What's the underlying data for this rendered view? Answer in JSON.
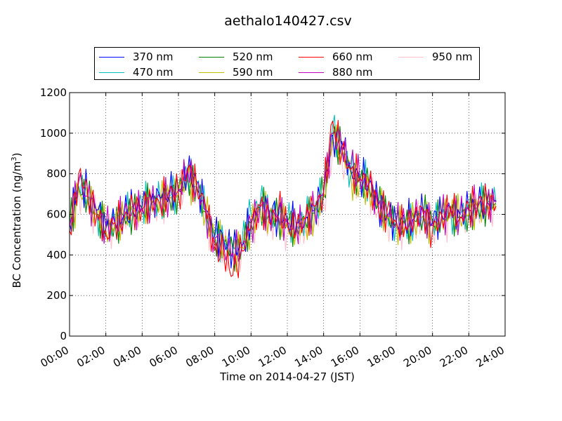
{
  "chart_data": {
    "type": "line",
    "title": "aethalo140427.csv",
    "xlabel": "Time on 2014-04-27 (JST)",
    "ylabel": "BC Concentration (ng/m",
    "ylabel_sup": "3",
    "ylabel_close": ")",
    "xlim": [
      0,
      24
    ],
    "ylim": [
      0,
      1200
    ],
    "grid": true,
    "legend_position": "upper-center",
    "x_ticks": [
      {
        "value": 0,
        "label": "00:00"
      },
      {
        "value": 2,
        "label": "02:00"
      },
      {
        "value": 4,
        "label": "04:00"
      },
      {
        "value": 6,
        "label": "06:00"
      },
      {
        "value": 8,
        "label": "08:00"
      },
      {
        "value": 10,
        "label": "10:00"
      },
      {
        "value": 12,
        "label": "12:00"
      },
      {
        "value": 14,
        "label": "14:00"
      },
      {
        "value": 16,
        "label": "16:00"
      },
      {
        "value": 18,
        "label": "18:00"
      },
      {
        "value": 20,
        "label": "20:00"
      },
      {
        "value": 22,
        "label": "22:00"
      },
      {
        "value": 24,
        "label": "24:00"
      }
    ],
    "y_ticks": [
      {
        "value": 0,
        "label": "0"
      },
      {
        "value": 200,
        "label": "200"
      },
      {
        "value": 400,
        "label": "400"
      },
      {
        "value": 600,
        "label": "600"
      },
      {
        "value": 800,
        "label": "800"
      },
      {
        "value": 1000,
        "label": "1000"
      },
      {
        "value": 1200,
        "label": "1200"
      }
    ],
    "x": [
      0,
      0.5,
      1,
      1.5,
      2,
      2.5,
      3,
      3.5,
      4,
      4.5,
      5,
      5.5,
      6,
      6.5,
      7,
      7.5,
      8,
      8.5,
      9,
      9.5,
      10,
      10.5,
      11,
      11.5,
      12,
      12.5,
      13,
      13.5,
      14,
      14.5,
      15,
      15.5,
      16,
      16.5,
      17,
      17.5,
      18,
      18.5,
      19,
      19.5,
      20,
      20.5,
      21,
      21.5,
      22,
      22.5,
      23,
      23.5
    ],
    "series": [
      {
        "name": "370 nm",
        "color": "#0000ff",
        "values": [
          560,
          760,
          700,
          620,
          540,
          560,
          600,
          620,
          640,
          660,
          680,
          700,
          720,
          800,
          760,
          620,
          500,
          470,
          430,
          450,
          560,
          640,
          620,
          600,
          580,
          560,
          580,
          620,
          720,
          990,
          960,
          820,
          780,
          760,
          660,
          600,
          570,
          560,
          580,
          600,
          560,
          600,
          620,
          600,
          620,
          640,
          660,
          670
        ]
      },
      {
        "name": "470 nm",
        "color": "#00bfbf",
        "values": [
          550,
          740,
          690,
          610,
          550,
          560,
          600,
          640,
          650,
          670,
          670,
          690,
          730,
          790,
          740,
          600,
          490,
          460,
          440,
          460,
          600,
          660,
          610,
          590,
          570,
          550,
          570,
          610,
          720,
          1040,
          930,
          810,
          770,
          750,
          650,
          600,
          565,
          555,
          575,
          595,
          560,
          595,
          615,
          600,
          615,
          640,
          655,
          660
        ]
      },
      {
        "name": "520 nm",
        "color": "#008000",
        "values": [
          540,
          730,
          680,
          600,
          530,
          550,
          590,
          615,
          630,
          650,
          665,
          685,
          715,
          780,
          740,
          610,
          490,
          455,
          425,
          445,
          555,
          630,
          605,
          585,
          565,
          545,
          565,
          605,
          700,
          980,
          920,
          800,
          760,
          740,
          645,
          590,
          560,
          550,
          570,
          590,
          550,
          590,
          610,
          590,
          605,
          630,
          650,
          655
        ]
      },
      {
        "name": "590 nm",
        "color": "#bfbf00",
        "values": [
          535,
          720,
          670,
          595,
          525,
          545,
          585,
          610,
          625,
          640,
          660,
          675,
          705,
          770,
          730,
          600,
          485,
          450,
          420,
          440,
          550,
          620,
          600,
          580,
          560,
          540,
          560,
          600,
          690,
          970,
          910,
          790,
          750,
          730,
          640,
          585,
          555,
          545,
          565,
          585,
          545,
          585,
          605,
          585,
          600,
          625,
          645,
          650
        ]
      },
      {
        "name": "660 nm",
        "color": "#ff0000",
        "values": [
          520,
          800,
          720,
          600,
          500,
          560,
          580,
          640,
          620,
          680,
          640,
          720,
          700,
          820,
          740,
          640,
          420,
          400,
          300,
          420,
          540,
          640,
          560,
          620,
          540,
          520,
          580,
          640,
          700,
          1060,
          900,
          820,
          780,
          760,
          640,
          620,
          560,
          540,
          600,
          620,
          520,
          600,
          640,
          580,
          640,
          660,
          680,
          640
        ]
      },
      {
        "name": "880 nm",
        "color": "#bf00bf",
        "values": [
          540,
          760,
          690,
          605,
          530,
          555,
          595,
          625,
          630,
          665,
          675,
          695,
          720,
          830,
          750,
          610,
          480,
          445,
          410,
          440,
          560,
          635,
          600,
          590,
          555,
          540,
          570,
          615,
          710,
          1000,
          920,
          850,
          770,
          750,
          640,
          600,
          555,
          545,
          575,
          600,
          545,
          595,
          620,
          590,
          620,
          640,
          665,
          660
        ]
      },
      {
        "name": "950 nm",
        "color": "#ffc0cb",
        "values": [
          500,
          700,
          650,
          580,
          510,
          530,
          570,
          600,
          610,
          630,
          640,
          660,
          690,
          760,
          700,
          580,
          460,
          430,
          400,
          420,
          520,
          590,
          570,
          550,
          530,
          500,
          520,
          560,
          660,
          940,
          880,
          780,
          740,
          720,
          620,
          570,
          540,
          530,
          550,
          570,
          530,
          560,
          580,
          560,
          580,
          600,
          620,
          620
        ]
      }
    ]
  }
}
